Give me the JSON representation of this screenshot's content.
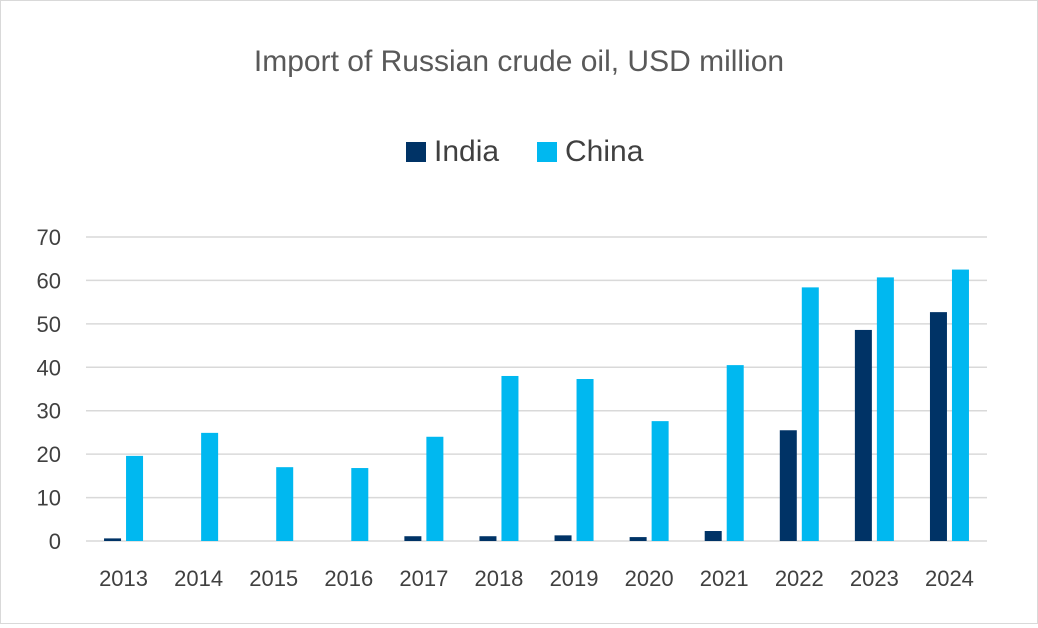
{
  "chart_data": {
    "type": "bar",
    "title": "Import of Russian crude oil, USD million",
    "xlabel": "",
    "ylabel": "",
    "categories": [
      "2013",
      "2014",
      "2015",
      "2016",
      "2017",
      "2018",
      "2019",
      "2020",
      "2021",
      "2022",
      "2023",
      "2024"
    ],
    "series": [
      {
        "name": "India",
        "color": "#003366",
        "values": [
          0.6,
          0,
          0,
          0,
          1.1,
          1.1,
          1.3,
          0.9,
          2.3,
          25.5,
          48.6,
          52.7
        ]
      },
      {
        "name": "China",
        "color": "#00B8F0",
        "values": [
          19.6,
          24.9,
          17.0,
          16.8,
          24.0,
          38.0,
          37.3,
          27.6,
          40.5,
          58.4,
          60.7,
          62.5
        ]
      }
    ],
    "ylim": [
      0,
      70
    ],
    "yticks": [
      0,
      10,
      20,
      30,
      40,
      50,
      60,
      70
    ],
    "grid": true,
    "legend_position": "top-center",
    "gridline_color": "#d9d9d9"
  }
}
